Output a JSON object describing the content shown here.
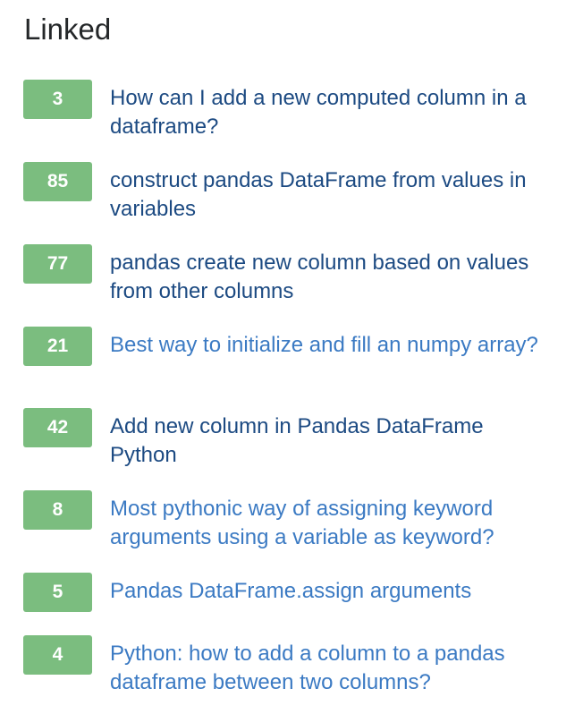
{
  "heading": "Linked",
  "items": [
    {
      "score": "3",
      "title": "How can I add a new computed column in a dataframe?",
      "visited": true
    },
    {
      "score": "85",
      "title": "construct pandas DataFrame from values in variables",
      "visited": true
    },
    {
      "score": "77",
      "title": "pandas create new column based on values from other columns",
      "visited": true
    },
    {
      "score": "21",
      "title": "Best way to initialize and fill an numpy array?",
      "visited": false
    },
    {
      "score": "42",
      "title": "Add new column in Pandas DataFrame Python",
      "visited": true
    },
    {
      "score": "8",
      "title": "Most pythonic way of assigning keyword arguments using a variable as keyword?",
      "visited": false
    },
    {
      "score": "5",
      "title": "Pandas DataFrame.assign arguments",
      "visited": false
    },
    {
      "score": "4",
      "title": "Python: how to add a column to a pandas dataframe between two columns?",
      "visited": false
    }
  ],
  "colors": {
    "badge_bg": "#7bbd7f",
    "link_visited": "#1c4a82",
    "link_unvisited": "#3b7ac3",
    "heading_text": "#242729"
  }
}
